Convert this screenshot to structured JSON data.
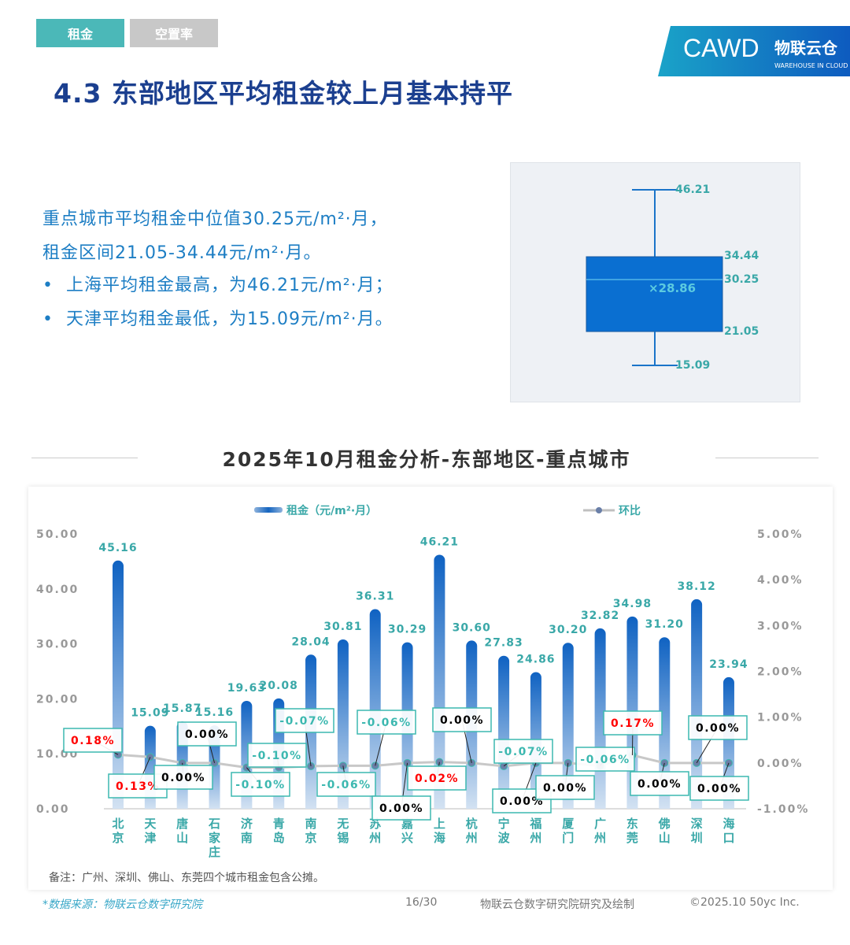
{
  "tabs": [
    {
      "label": "租金",
      "active": true
    },
    {
      "label": "空置率",
      "active": false
    }
  ],
  "logo": {
    "cawd": "CAWD",
    "brand": "物联云仓",
    "brand_en": "WAREHOUSE IN CLOUD"
  },
  "title": "4.3 东部地区平均租金较上月基本持平",
  "summary": [
    "重点城市平均租金中位值30.25元/m²·月，",
    "租金区间21.05-34.44元/m²·月。",
    "上海平均租金最高，为46.21元/m²·月；",
    "天津平均租金最低，为15.09元/m²·月。"
  ],
  "boxplot": {
    "max": 46.21,
    "q3": 34.44,
    "median": 30.25,
    "mean": 28.86,
    "q1": 21.05,
    "min": 15.09,
    "max_label": "46.21",
    "q3_label": "34.44",
    "median_label": "30.25",
    "mean_label": "×28.86",
    "q1_label": "21.05",
    "min_label": "15.09"
  },
  "chart_data": {
    "type": "bar+line",
    "title": "2025年10月租金分析-东部地区-重点城市",
    "categories": [
      "北京",
      "天津",
      "唐山",
      "石家庄",
      "济南",
      "青岛",
      "南京",
      "无锡",
      "苏州",
      "嘉兴",
      "上海",
      "杭州",
      "宁波",
      "福州",
      "厦门",
      "广州",
      "东莞",
      "佛山",
      "深圳",
      "海口"
    ],
    "series": [
      {
        "name": "租金（元/m²·月）",
        "type": "bar",
        "axis": "left",
        "values": [
          45.16,
          15.09,
          15.87,
          15.16,
          19.63,
          20.08,
          28.04,
          30.81,
          36.31,
          30.29,
          46.21,
          30.6,
          27.83,
          24.86,
          30.2,
          32.82,
          34.98,
          31.2,
          38.12,
          23.94
        ],
        "labels": [
          "45.16",
          "15.09",
          "15.87",
          "15.16",
          "19.63",
          "20.08",
          "28.04",
          "30.81",
          "36.31",
          "30.29",
          "46.21",
          "30.60",
          "27.83",
          "24.86",
          "30.20",
          "32.82",
          "34.98",
          "31.20",
          "38.12",
          "23.94"
        ]
      },
      {
        "name": "环比",
        "type": "line",
        "axis": "right",
        "values": [
          0.18,
          0.13,
          0.0,
          0.0,
          -0.1,
          -0.1,
          -0.07,
          -0.06,
          -0.06,
          0.0,
          0.02,
          0.0,
          -0.07,
          0.0,
          0.0,
          -0.06,
          0.17,
          0.0,
          0.0,
          0.0
        ],
        "labels": [
          "0.18%",
          "0.13%",
          "0.00%",
          "0.00%",
          "-0.10%",
          "-0.10%",
          "-0.07%",
          "-0.06%",
          "-0.06%",
          "0.00%",
          "0.02%",
          "0.00%",
          "-0.07%",
          "0.00%",
          "0.00%",
          "-0.06%",
          "0.17%",
          "0.00%",
          "0.00%",
          "0.00%"
        ]
      }
    ],
    "left_axis": {
      "range": [
        0,
        50
      ],
      "ticks": [
        "0.00",
        "10.00",
        "20.00",
        "30.00",
        "40.00",
        "50.00"
      ]
    },
    "right_axis": {
      "range": [
        -1,
        5
      ],
      "ticks": [
        "-1.00%",
        "0.00%",
        "1.00%",
        "2.00%",
        "3.00%",
        "4.00%",
        "5.00%"
      ]
    },
    "legend": "top-center",
    "colors": {
      "bar": "#1565c0",
      "line": "#c8c8c8",
      "positive": "#ff0000",
      "negative": "#3cb8b0",
      "zero": "#000000",
      "label": "#3aa8a8"
    }
  },
  "note": "备注：广州、深圳、佛山、东莞四个城市租金包含公摊。",
  "footer": {
    "source": "*数据来源：物联云仓数字研究院",
    "page": "16/30",
    "credit": "物联云仓数字研究院研究及绘制",
    "copyright": "©2025.10 50yc Inc."
  }
}
